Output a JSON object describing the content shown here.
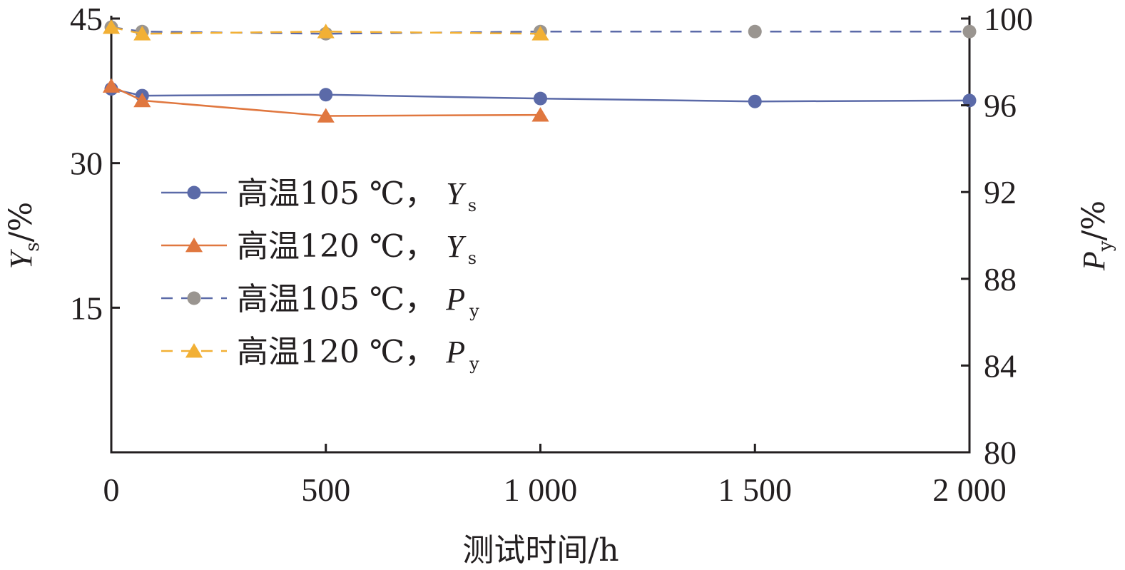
{
  "chart_data": {
    "type": "line",
    "xlabel": "测试时间/h",
    "ylabel_left": {
      "main": "Y",
      "sub": "s",
      "suffix": "/%"
    },
    "ylabel_right": {
      "main": "P",
      "sub": "y",
      "suffix": "/%"
    },
    "xlim": [
      0,
      2000
    ],
    "ylim_left": [
      0,
      45
    ],
    "ylim_right": [
      80,
      100
    ],
    "x_ticks": [
      "0",
      "500",
      "1 000",
      "1 500",
      "2 000"
    ],
    "x_tick_values": [
      0,
      500,
      1000,
      1500,
      2000
    ],
    "y_left_ticks": [
      "15",
      "30",
      "45"
    ],
    "y_left_tick_values": [
      15,
      30,
      45
    ],
    "y_right_ticks": [
      "80",
      "84",
      "88",
      "92",
      "96",
      "100"
    ],
    "y_right_tick_values": [
      80,
      84,
      88,
      92,
      96,
      100
    ],
    "grid": false,
    "legend_position": "center-left",
    "series": [
      {
        "name": "高温105 ℃, Ys",
        "legend_prefix": "高温105 ℃，",
        "legend_var": "Y",
        "legend_sub": "s",
        "axis": "left",
        "marker": "circle",
        "dashed": false,
        "color": "#5b6aa8",
        "x": [
          0,
          72,
          500,
          1000,
          1500,
          2000
        ],
        "y": [
          37.7,
          37.0,
          37.1,
          36.7,
          36.4,
          36.5
        ]
      },
      {
        "name": "高温120 ℃, Ys",
        "legend_prefix": "高温120 ℃，",
        "legend_var": "Y",
        "legend_sub": "s",
        "axis": "left",
        "marker": "triangle",
        "dashed": false,
        "color": "#e0773f",
        "x": [
          0,
          72,
          500,
          1000
        ],
        "y": [
          38.0,
          36.5,
          34.9,
          35.0
        ]
      },
      {
        "name": "高温105 ℃, Py",
        "legend_prefix": "高温105 ℃，",
        "legend_var": "P",
        "legend_sub": "y",
        "axis": "right",
        "marker": "circle",
        "dashed": true,
        "color": "#9a9590",
        "line_color": "#5b6aa8",
        "x": [
          0,
          72,
          500,
          1000,
          1500,
          2000
        ],
        "y": [
          99.6,
          99.4,
          99.3,
          99.4,
          99.4,
          99.4
        ]
      },
      {
        "name": "高温120 ℃, Py",
        "legend_prefix": "高温120 ℃，",
        "legend_var": "P",
        "legend_sub": "y",
        "axis": "right",
        "marker": "triangle",
        "dashed": true,
        "color": "#f2b035",
        "x": [
          0,
          72,
          500,
          1000
        ],
        "y": [
          99.6,
          99.3,
          99.4,
          99.3
        ]
      }
    ]
  }
}
